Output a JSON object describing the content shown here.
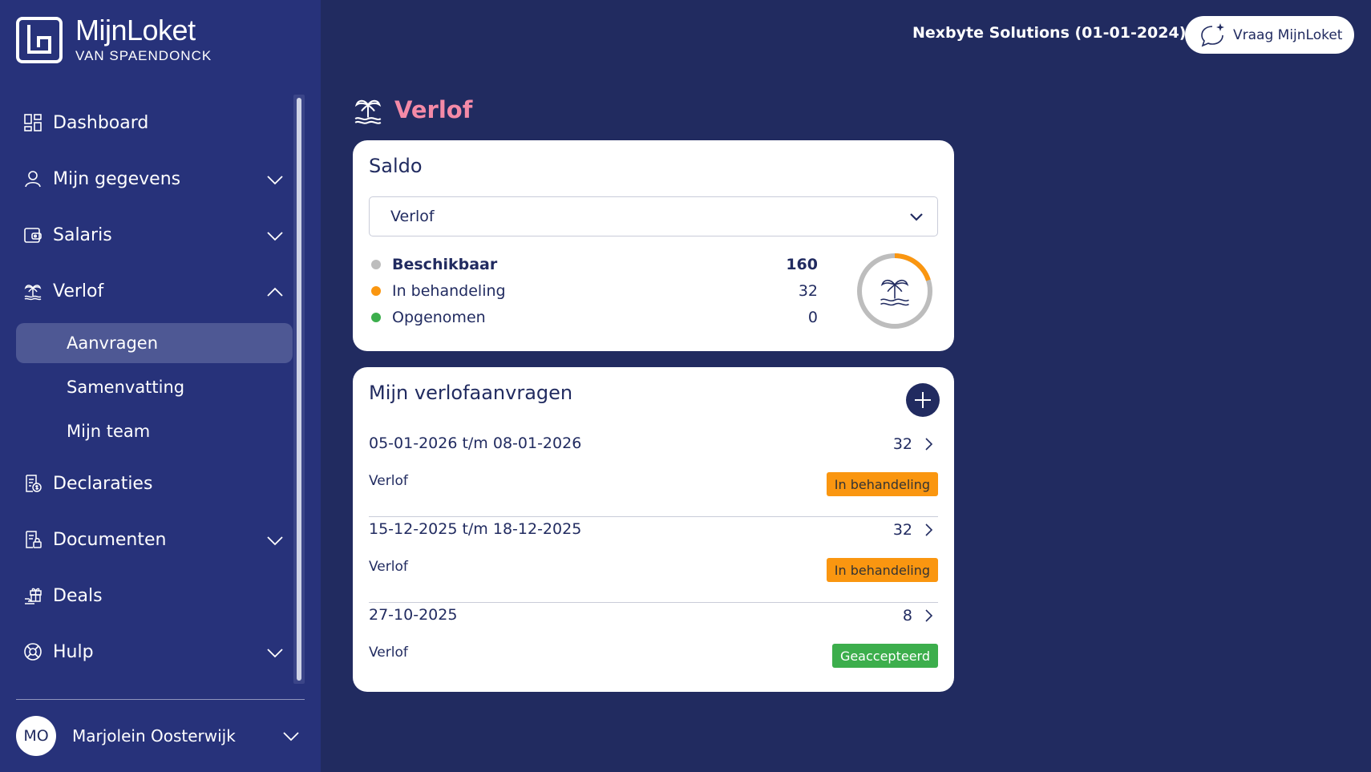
{
  "brand": {
    "title": "MijnLoket",
    "subtitle": "VAN SPAENDONCK"
  },
  "sidebar": {
    "items": [
      {
        "label": "Dashboard",
        "icon": "dashboard-icon",
        "has_chevron": false
      },
      {
        "label": "Mijn gegevens",
        "icon": "user-icon",
        "has_chevron": true
      },
      {
        "label": "Salaris",
        "icon": "wallet-icon",
        "has_chevron": true
      },
      {
        "label": "Verlof",
        "icon": "palm-tree-icon",
        "has_chevron": true,
        "expanded": true
      },
      {
        "label": "Declaraties",
        "icon": "receipt-icon",
        "has_chevron": false
      },
      {
        "label": "Documenten",
        "icon": "document-lock-icon",
        "has_chevron": true
      },
      {
        "label": "Deals",
        "icon": "gift-icon",
        "has_chevron": false
      },
      {
        "label": "Hulp",
        "icon": "lifebuoy-icon",
        "has_chevron": true
      }
    ],
    "verlof_sub": [
      {
        "label": "Aanvragen",
        "active": true
      },
      {
        "label": "Samenvatting",
        "active": false
      },
      {
        "label": "Mijn team",
        "active": false
      }
    ]
  },
  "user": {
    "initials": "MO",
    "name": "Marjolein Oosterwijk"
  },
  "header": {
    "company": "Nexbyte Solutions (01-01-2024)",
    "ask_button": "Vraag MijnLoket"
  },
  "page": {
    "title": "Verlof"
  },
  "saldo": {
    "title": "Saldo",
    "select_value": "Verlof",
    "legend": [
      {
        "label": "Beschikbaar",
        "value": "160",
        "color": "#bdbdbd"
      },
      {
        "label": "In behandeling",
        "value": "32",
        "color": "#fa9610"
      },
      {
        "label": "Opgenomen",
        "value": "0",
        "color": "#3cae4c"
      }
    ]
  },
  "requests": {
    "title": "Mijn verlofaanvragen",
    "items": [
      {
        "date": "05-01-2026 t/m 08-01-2026",
        "hours": "32",
        "type": "Verlof",
        "status": "In behandeling",
        "status_kind": "pending"
      },
      {
        "date": "15-12-2025 t/m 18-12-2025",
        "hours": "32",
        "type": "Verlof",
        "status": "In behandeling",
        "status_kind": "pending"
      },
      {
        "date": "27-10-2025",
        "hours": "8",
        "type": "Verlof",
        "status": "Geaccepteerd",
        "status_kind": "approved"
      }
    ]
  },
  "colors": {
    "background": "#212b60",
    "sidebar": "#27327a",
    "accent_pink": "#f48aa7",
    "pending": "#fa9610",
    "approved": "#3cae4c"
  }
}
